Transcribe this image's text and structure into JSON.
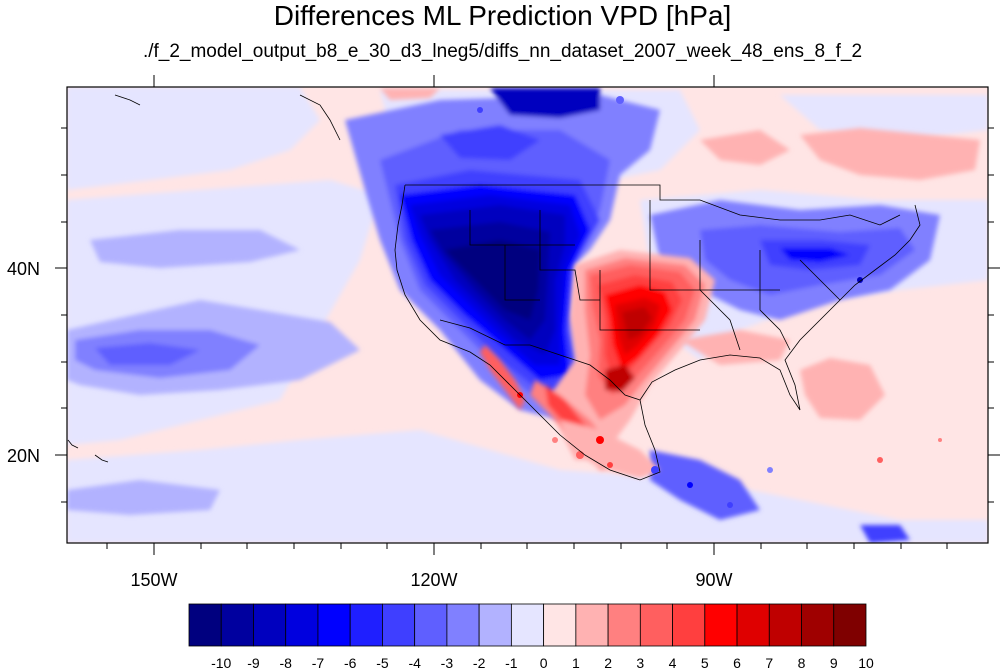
{
  "title": "Differences ML Prediction VPD [hPa]",
  "subtitle": "./f_2_model_output_b8_e_30_d3_lneg5/diffs_nn_dataset_2007_week_48_ens_8_f_2",
  "axes": {
    "lon_labels": [
      "150W",
      "120W",
      "90W"
    ],
    "lat_labels": [
      "40N",
      "20N"
    ]
  },
  "colorbar": {
    "labels": [
      "-10",
      "-9",
      "-8",
      "-7",
      "-6",
      "-5",
      "-4",
      "-3",
      "-2",
      "-1",
      "0",
      "1",
      "2",
      "3",
      "4",
      "5",
      "6",
      "7",
      "8",
      "9",
      "10"
    ],
    "colors": [
      "#00007f",
      "#00009f",
      "#0000bf",
      "#0000df",
      "#0000ff",
      "#1f1fff",
      "#3f3fff",
      "#5f5fff",
      "#8080ff",
      "#b2b2ff",
      "#e5e5ff",
      "#ffe5e5",
      "#ffb2b2",
      "#ff8080",
      "#ff5f5f",
      "#ff3f3f",
      "#ff0000",
      "#df0000",
      "#bf0000",
      "#9f0000",
      "#7f0000"
    ]
  }
}
